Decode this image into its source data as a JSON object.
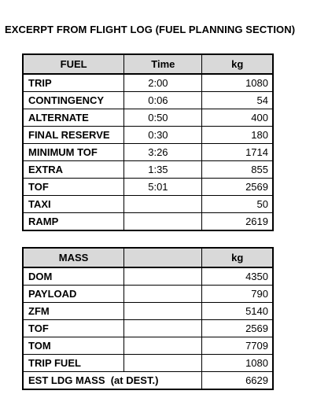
{
  "title": "EXCERPT FROM FLIGHT LOG (FUEL PLANNING SECTION)",
  "fuel_table": {
    "headers": [
      "FUEL",
      "Time",
      "kg"
    ],
    "rows": [
      {
        "label": "TRIP",
        "time": "2:00",
        "kg": "1080"
      },
      {
        "label": "CONTINGENCY",
        "time": "0:06",
        "kg": "54"
      },
      {
        "label": "ALTERNATE",
        "time": "0:50",
        "kg": "400"
      },
      {
        "label": "FINAL RESERVE",
        "time": "0:30",
        "kg": "180"
      },
      {
        "label": "MINIMUM TOF",
        "time": "3:26",
        "kg": "1714"
      },
      {
        "label": "EXTRA",
        "time": "1:35",
        "kg": "855"
      },
      {
        "label": "TOF",
        "time": "5:01",
        "kg": "2569"
      },
      {
        "label": "TAXI",
        "time": "",
        "kg": "50"
      },
      {
        "label": "RAMP",
        "time": "",
        "kg": "2619"
      }
    ]
  },
  "mass_table": {
    "headers": [
      "MASS",
      "",
      "kg"
    ],
    "rows": [
      {
        "label": "DOM",
        "kg": "4350"
      },
      {
        "label": "PAYLOAD",
        "kg": "790"
      },
      {
        "label": "ZFM",
        "kg": "5140"
      },
      {
        "label": "TOF",
        "kg": "2569"
      },
      {
        "label": "TOM",
        "kg": "7709"
      },
      {
        "label": "TRIP FUEL",
        "kg": "1080"
      },
      {
        "label": "EST LDG MASS  (at DEST.)",
        "kg": "6629"
      }
    ]
  }
}
